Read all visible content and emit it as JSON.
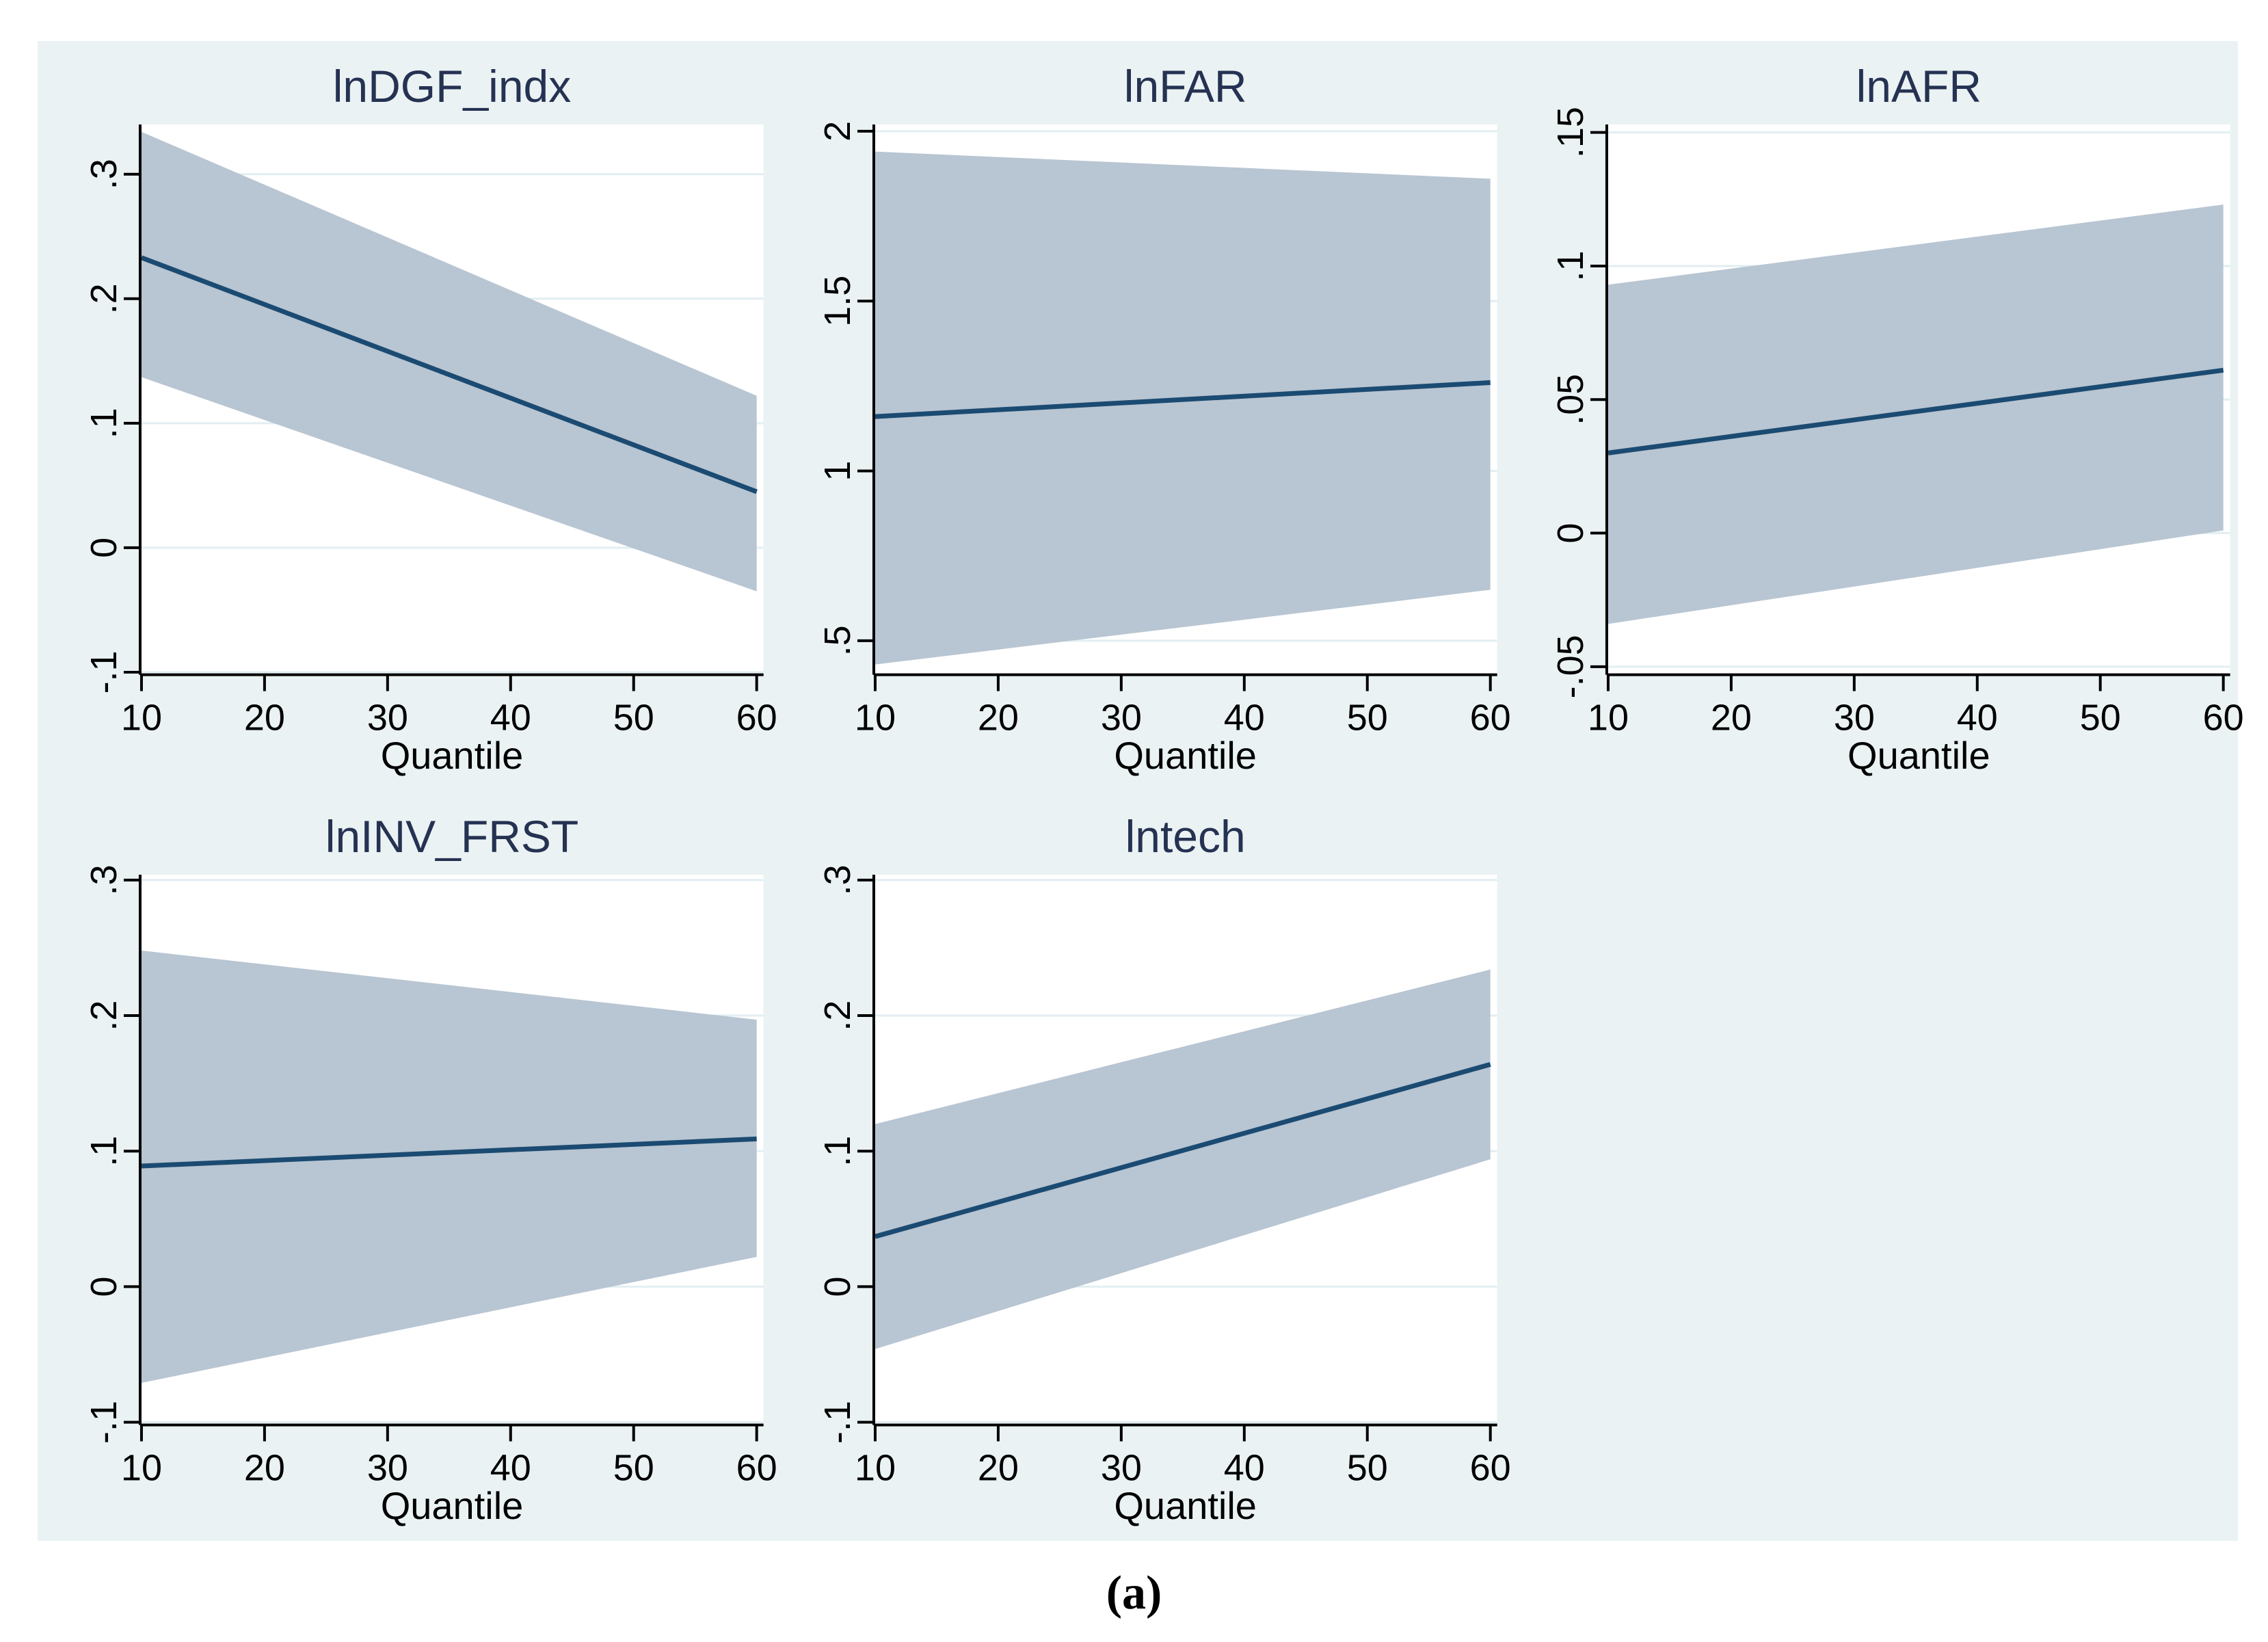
{
  "figure": {
    "caption": "(a)",
    "colors": {
      "figure_background": "#eaf2f3",
      "plot_background": "#ffffff",
      "gridline": "#e2eef2",
      "ci_band": "#b8c5d2",
      "coefficient_line": "#1b4b72",
      "axis": "#000000",
      "title_text": "#253252",
      "tick_text": "#000000"
    },
    "layout": {
      "rows": 2,
      "columns": 3,
      "empty_cells": [
        "row2-col3"
      ]
    }
  },
  "chart_data": [
    {
      "type": "line",
      "title": "lnDGF_indx",
      "xlabel": "Quantile",
      "x": [
        10,
        60
      ],
      "series": [
        {
          "name": "coefficient",
          "values": [
            0.233,
            0.045
          ]
        },
        {
          "name": "ci_upper",
          "values": [
            0.334,
            0.122
          ]
        },
        {
          "name": "ci_lower",
          "values": [
            0.137,
            -0.035
          ]
        }
      ],
      "x_ticks": [
        10,
        20,
        30,
        40,
        50,
        60
      ],
      "y_tick_labels": [
        "-.1",
        "0",
        ".1",
        ".2",
        ".3"
      ],
      "y_tick_values": [
        -0.1,
        0,
        0.1,
        0.2,
        0.3
      ],
      "xlim": [
        10,
        60
      ],
      "ylim": [
        -0.102,
        0.34
      ],
      "grid": true,
      "band": true,
      "legend": "none"
    },
    {
      "type": "line",
      "title": "lnFAR",
      "xlabel": "Quantile",
      "x": [
        10,
        60
      ],
      "series": [
        {
          "name": "coefficient",
          "values": [
            1.16,
            1.26
          ]
        },
        {
          "name": "ci_upper",
          "values": [
            1.94,
            1.86
          ]
        },
        {
          "name": "ci_lower",
          "values": [
            0.43,
            0.65
          ]
        }
      ],
      "x_ticks": [
        10,
        20,
        30,
        40,
        50,
        60
      ],
      "y_tick_labels": [
        ".5",
        "1",
        "1.5",
        "2"
      ],
      "y_tick_values": [
        0.5,
        1,
        1.5,
        2
      ],
      "xlim": [
        10,
        60
      ],
      "ylim": [
        0.4,
        2.02
      ],
      "grid": true,
      "band": true,
      "legend": "none"
    },
    {
      "type": "line",
      "title": "lnAFR",
      "xlabel": "Quantile",
      "x": [
        10,
        60
      ],
      "series": [
        {
          "name": "coefficient",
          "values": [
            0.03,
            0.061
          ]
        },
        {
          "name": "ci_upper",
          "values": [
            0.093,
            0.123
          ]
        },
        {
          "name": "ci_lower",
          "values": [
            -0.034,
            0.001
          ]
        }
      ],
      "x_ticks": [
        10,
        20,
        30,
        40,
        50,
        60
      ],
      "y_tick_labels": [
        "-.05",
        "0",
        ".05",
        ".1",
        ".15"
      ],
      "y_tick_values": [
        -0.05,
        0,
        0.05,
        0.1,
        0.15
      ],
      "xlim": [
        10,
        60
      ],
      "ylim": [
        -0.053,
        0.153
      ],
      "grid": true,
      "band": true,
      "legend": "none"
    },
    {
      "type": "line",
      "title": "lnINV_FRST",
      "xlabel": "Quantile",
      "x": [
        10,
        60
      ],
      "series": [
        {
          "name": "coefficient",
          "values": [
            0.089,
            0.109
          ]
        },
        {
          "name": "ci_upper",
          "values": [
            0.248,
            0.197
          ]
        },
        {
          "name": "ci_lower",
          "values": [
            -0.071,
            0.022
          ]
        }
      ],
      "x_ticks": [
        10,
        20,
        30,
        40,
        50,
        60
      ],
      "y_tick_labels": [
        "-.1",
        "0",
        ".1",
        ".2",
        ".3"
      ],
      "y_tick_values": [
        -0.1,
        0,
        0.1,
        0.2,
        0.3
      ],
      "xlim": [
        10,
        60
      ],
      "ylim": [
        -0.102,
        0.304
      ],
      "grid": true,
      "band": true,
      "legend": "none"
    },
    {
      "type": "line",
      "title": "lntech",
      "xlabel": "Quantile",
      "x": [
        10,
        60
      ],
      "series": [
        {
          "name": "coefficient",
          "values": [
            0.037,
            0.164
          ]
        },
        {
          "name": "ci_upper",
          "values": [
            0.12,
            0.234
          ]
        },
        {
          "name": "ci_lower",
          "values": [
            -0.046,
            0.094
          ]
        }
      ],
      "x_ticks": [
        10,
        20,
        30,
        40,
        50,
        60
      ],
      "y_tick_labels": [
        "-.1",
        "0",
        ".1",
        ".2",
        ".3"
      ],
      "y_tick_values": [
        -0.1,
        0,
        0.1,
        0.2,
        0.3
      ],
      "xlim": [
        10,
        60
      ],
      "ylim": [
        -0.102,
        0.304
      ],
      "grid": true,
      "band": true,
      "legend": "none"
    }
  ]
}
